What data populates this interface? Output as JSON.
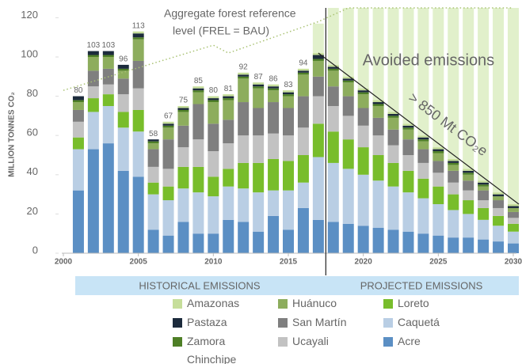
{
  "chart_data": {
    "type": "bar",
    "stacked": true,
    "y_label": "MILLION TONNES CO₂",
    "x": [
      2001,
      2002,
      2003,
      2004,
      2005,
      2006,
      2007,
      2008,
      2009,
      2010,
      2011,
      2012,
      2013,
      2014,
      2015,
      2016,
      2017,
      2018,
      2019,
      2020,
      2021,
      2022,
      2023,
      2024,
      2025,
      2026,
      2027,
      2028,
      2029,
      2030
    ],
    "xlim": [
      2000,
      2030
    ],
    "xticks": [
      2000,
      2005,
      2010,
      2015,
      2020,
      2025,
      2030
    ],
    "ylim": [
      0,
      125
    ],
    "yticks": [
      0,
      20,
      40,
      60,
      80,
      100,
      120
    ],
    "series": [
      {
        "name": "Acre",
        "color": "#5b8fc4",
        "values": [
          32,
          53,
          56,
          42,
          39,
          12,
          9,
          16,
          10,
          10,
          17,
          16,
          11,
          19,
          12,
          23,
          17,
          16,
          15,
          14,
          13,
          12,
          11,
          10,
          9,
          8,
          8,
          7,
          6,
          5
        ]
      },
      {
        "name": "Caquetá",
        "color": "#b9cee4",
        "values": [
          21,
          19,
          19,
          22,
          23,
          18,
          18,
          17,
          21,
          19,
          17,
          17,
          20,
          13,
          20,
          13,
          32,
          30,
          28,
          26,
          24,
          22,
          20,
          18,
          16,
          14,
          12,
          10,
          8,
          6
        ]
      },
      {
        "name": "Loreto",
        "color": "#78bd2b",
        "values": [
          6,
          7,
          6,
          8,
          11,
          6,
          7,
          11,
          13,
          10,
          9,
          13,
          15,
          16,
          15,
          14,
          17,
          16,
          15,
          14,
          13,
          12,
          11,
          10,
          9,
          8,
          7,
          6,
          5,
          4
        ]
      },
      {
        "name": "Ucayali",
        "color": "#c2c2c2",
        "values": [
          8,
          6,
          5,
          9,
          11,
          8,
          9,
          10,
          14,
          13,
          13,
          14,
          14,
          13,
          13,
          14,
          14,
          13,
          12,
          11,
          10,
          9,
          8,
          8,
          7,
          6,
          5,
          4,
          4,
          3
        ]
      },
      {
        "name": "San Martín",
        "color": "#7f7f7f",
        "values": [
          6,
          8,
          8,
          8,
          14,
          9,
          15,
          11,
          18,
          14,
          12,
          17,
          14,
          16,
          14,
          16,
          10,
          10,
          10,
          9,
          9,
          8,
          8,
          7,
          6,
          6,
          5,
          5,
          4,
          3
        ]
      },
      {
        "name": "Huánuco",
        "color": "#8dad5d",
        "values": [
          4,
          7,
          6,
          4,
          11,
          3,
          6,
          7,
          6,
          11,
          10,
          12,
          10,
          6,
          6,
          11,
          8,
          8,
          7,
          7,
          6,
          6,
          5,
          4,
          4,
          3,
          3,
          2,
          2,
          2
        ]
      },
      {
        "name": "Zamora Chinchipe",
        "color": "#4e7f26",
        "values": [
          1,
          1,
          1,
          1,
          1,
          1,
          1,
          1,
          1,
          1,
          1,
          1,
          1,
          1,
          1,
          1,
          1,
          1,
          1,
          1,
          1,
          1,
          1,
          1,
          1,
          1,
          1,
          1,
          0,
          0
        ]
      },
      {
        "name": "Pastaza",
        "color": "#1c2b3c",
        "values": [
          2,
          2,
          2,
          2,
          2,
          1,
          1,
          1,
          1,
          1,
          1,
          1,
          1,
          1,
          1,
          1,
          2,
          1,
          1,
          1,
          1,
          1,
          1,
          1,
          1,
          1,
          1,
          1,
          1,
          1
        ]
      },
      {
        "name": "Amazonas",
        "color": "#c6de9a",
        "values": [
          0,
          0,
          0,
          0,
          1,
          0,
          1,
          1,
          1,
          1,
          1,
          1,
          1,
          1,
          1,
          1,
          1,
          1,
          1,
          1,
          1,
          1,
          1,
          1,
          1,
          1,
          1,
          1,
          1,
          1
        ]
      }
    ],
    "avoided": {
      "label": "Avoided emissions",
      "color": "#e1f0cb",
      "values": [
        null,
        null,
        null,
        null,
        null,
        null,
        null,
        null,
        null,
        null,
        null,
        null,
        null,
        null,
        null,
        null,
        15,
        29,
        35,
        41,
        47,
        53,
        59,
        65,
        71,
        77,
        82,
        88,
        94,
        100
      ]
    },
    "totals": [
      80,
      103,
      103,
      96,
      113,
      58,
      67,
      75,
      85,
      80,
      81,
      92,
      87,
      86,
      83,
      94,
      null,
      null,
      null,
      null,
      null,
      null,
      null,
      null,
      null,
      null,
      null,
      null,
      null,
      null
    ],
    "frel": {
      "label": [
        "Aggregate forest reference",
        "level (FREL = BAU)"
      ],
      "color": "#a9c273",
      "x": [
        2000,
        2010,
        2011,
        2017,
        2019,
        2030
      ],
      "values": [
        83,
        106,
        102,
        118,
        125,
        125
      ]
    },
    "trend_label": "> 850 Mt CO₂e",
    "periods": [
      "HISTORICAL EMISSIONS",
      "PROJECTED EMISSIONS"
    ]
  }
}
